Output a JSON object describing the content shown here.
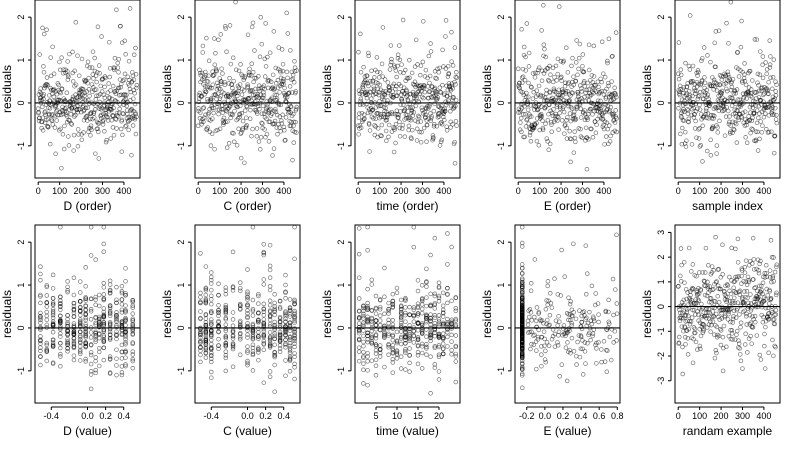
{
  "chart_data": [
    {
      "type": "scatter",
      "xlabel": "D (order)",
      "ylabel": "residuals",
      "xlim": [
        -15,
        475
      ],
      "ylim": [
        -1.75,
        2.4
      ],
      "xticks": [
        0,
        100,
        200,
        300,
        400
      ],
      "xtick_labels": [
        "0",
        "100",
        "200",
        "300",
        "400"
      ],
      "yticks": [
        -1,
        0,
        1,
        2
      ],
      "ytick_labels": [
        "-1",
        "0",
        "1",
        "2"
      ],
      "ref_line": 0,
      "generator": {
        "mode": "index",
        "n": 460,
        "xmin": 0,
        "xmax": 460,
        "spread": 0.48,
        "seed": 11
      }
    },
    {
      "type": "scatter",
      "xlabel": "C (order)",
      "ylabel": "residuals",
      "xlim": [
        -15,
        475
      ],
      "ylim": [
        -1.75,
        2.4
      ],
      "xticks": [
        0,
        100,
        200,
        300,
        400
      ],
      "xtick_labels": [
        "0",
        "100",
        "200",
        "300",
        "400"
      ],
      "yticks": [
        -1,
        0,
        1,
        2
      ],
      "ytick_labels": [
        "-1",
        "0",
        "1",
        "2"
      ],
      "ref_line": 0,
      "generator": {
        "mode": "index",
        "n": 460,
        "xmin": 0,
        "xmax": 460,
        "spread": 0.48,
        "seed": 23
      }
    },
    {
      "type": "scatter",
      "xlabel": "time (order)",
      "ylabel": "residuals",
      "xlim": [
        -15,
        475
      ],
      "ylim": [
        -1.75,
        2.4
      ],
      "xticks": [
        0,
        100,
        200,
        300,
        400
      ],
      "xtick_labels": [
        "0",
        "100",
        "200",
        "300",
        "400"
      ],
      "yticks": [
        -1,
        0,
        1,
        2
      ],
      "ytick_labels": [
        "-1",
        "0",
        "1",
        "2"
      ],
      "ref_line": 0,
      "generator": {
        "mode": "index",
        "n": 460,
        "xmin": 0,
        "xmax": 460,
        "spread": 0.48,
        "seed": 37
      }
    },
    {
      "type": "scatter",
      "xlabel": "E (order)",
      "ylabel": "residuals",
      "xlim": [
        -15,
        475
      ],
      "ylim": [
        -1.75,
        2.4
      ],
      "xticks": [
        0,
        100,
        200,
        300,
        400
      ],
      "xtick_labels": [
        "0",
        "100",
        "200",
        "300",
        "400"
      ],
      "yticks": [
        -1,
        0,
        1,
        2
      ],
      "ytick_labels": [
        "-1",
        "0",
        "1",
        "2"
      ],
      "ref_line": 0,
      "generator": {
        "mode": "index",
        "n": 460,
        "xmin": 0,
        "xmax": 460,
        "spread": 0.48,
        "seed": 41
      }
    },
    {
      "type": "scatter",
      "xlabel": "sample index",
      "ylabel": "residuals",
      "xlim": [
        -15,
        475
      ],
      "ylim": [
        -1.75,
        2.4
      ],
      "xticks": [
        0,
        100,
        200,
        300,
        400
      ],
      "xtick_labels": [
        "0",
        "100",
        "200",
        "300",
        "400"
      ],
      "yticks": [
        -1,
        0,
        1,
        2
      ],
      "ytick_labels": [
        "-1",
        "0",
        "1",
        "2"
      ],
      "ref_line": 0,
      "generator": {
        "mode": "index",
        "n": 460,
        "xmin": 0,
        "xmax": 460,
        "spread": 0.48,
        "seed": 53
      }
    },
    {
      "type": "scatter",
      "xlabel": "D (value)",
      "ylabel": "residuals",
      "xlim": [
        -0.58,
        0.58
      ],
      "ylim": [
        -1.75,
        2.4
      ],
      "xticks": [
        -0.4,
        0.0,
        0.2,
        0.4
      ],
      "xtick_labels": [
        "-0.4",
        "0.0",
        "0.2",
        "0.4"
      ],
      "yticks": [
        -1,
        0,
        1,
        2
      ],
      "ytick_labels": [
        "-1",
        "0",
        "1",
        "2"
      ],
      "ref_line": 0,
      "generator": {
        "mode": "discrete",
        "levels": [
          -0.52,
          -0.45,
          -0.38,
          -0.3,
          -0.22,
          -0.15,
          -0.08,
          -0.02,
          0.04,
          0.09,
          0.13,
          0.18,
          0.25,
          0.32,
          0.38,
          0.42,
          0.5
        ],
        "n": 460,
        "spread": 0.48,
        "seed": 61
      }
    },
    {
      "type": "scatter",
      "xlabel": "C (value)",
      "ylabel": "residuals",
      "xlim": [
        -0.58,
        0.58
      ],
      "ylim": [
        -1.75,
        2.4
      ],
      "xticks": [
        -0.4,
        0.0,
        0.2,
        0.4
      ],
      "xtick_labels": [
        "-0.4",
        "0.0",
        "0.2",
        "0.4"
      ],
      "yticks": [
        -1,
        0,
        1,
        2
      ],
      "ytick_labels": [
        "-1",
        "0",
        "1",
        "2"
      ],
      "ref_line": 0,
      "generator": {
        "mode": "discrete",
        "levels": [
          -0.52,
          -0.46,
          -0.4,
          -0.32,
          -0.24,
          -0.16,
          -0.08,
          0.0,
          0.06,
          0.12,
          0.18,
          0.25,
          0.3,
          0.36,
          0.42,
          0.47,
          0.52
        ],
        "n": 460,
        "spread": 0.48,
        "seed": 71
      }
    },
    {
      "type": "scatter",
      "xlabel": "time (value)",
      "ylabel": "residuals",
      "xlim": [
        0,
        25
      ],
      "ylim": [
        -1.75,
        2.4
      ],
      "xticks": [
        5,
        10,
        15,
        20
      ],
      "xtick_labels": [
        "5",
        "10",
        "15",
        "20"
      ],
      "yticks": [
        -1,
        0,
        1,
        2
      ],
      "ytick_labels": [
        "-1",
        "0",
        "1",
        "2"
      ],
      "ref_line": 0,
      "generator": {
        "mode": "discrete",
        "levels": [
          1,
          2,
          3,
          4,
          5,
          6,
          7,
          8,
          9,
          10,
          11,
          12,
          13,
          14,
          15,
          16,
          17,
          18,
          19,
          20,
          21,
          22,
          23,
          24
        ],
        "n": 460,
        "spread": 0.48,
        "seed": 83
      }
    },
    {
      "type": "scatter",
      "xlabel": "E (value)",
      "ylabel": "residuals",
      "xlim": [
        -0.33,
        0.83
      ],
      "ylim": [
        -1.75,
        2.4
      ],
      "xticks": [
        -0.2,
        0.0,
        0.2,
        0.4,
        0.6,
        0.8
      ],
      "xtick_labels": [
        "-0.2",
        "0.0",
        "0.2",
        "0.4",
        "0.6",
        "0.8"
      ],
      "yticks": [
        -1,
        0,
        1,
        2
      ],
      "ytick_labels": [
        "-1",
        "0",
        "1",
        "2"
      ],
      "ref_line": 0,
      "generator": {
        "mode": "clustered",
        "cluster_x": -0.25,
        "cluster_fraction": 0.6,
        "xmin": -0.2,
        "xmax": 0.8,
        "n": 460,
        "spread": 0.48,
        "seed": 97
      }
    },
    {
      "type": "scatter",
      "xlabel": "randam example",
      "ylabel": "residuals",
      "xlim": [
        -15,
        475
      ],
      "ylim": [
        -3.9,
        3.3
      ],
      "xticks": [
        0,
        100,
        200,
        300,
        400
      ],
      "xtick_labels": [
        "0",
        "100",
        "200",
        "300",
        "400"
      ],
      "yticks": [
        -3,
        -2,
        -1,
        0,
        1,
        2,
        3
      ],
      "ytick_labels": [
        "-3",
        "-2",
        "-1",
        "0",
        "1",
        "2",
        "3"
      ],
      "ref_line": 0,
      "generator": {
        "mode": "index",
        "n": 460,
        "xmin": 0,
        "xmax": 460,
        "spread": 1.0,
        "seed": 109
      }
    }
  ]
}
